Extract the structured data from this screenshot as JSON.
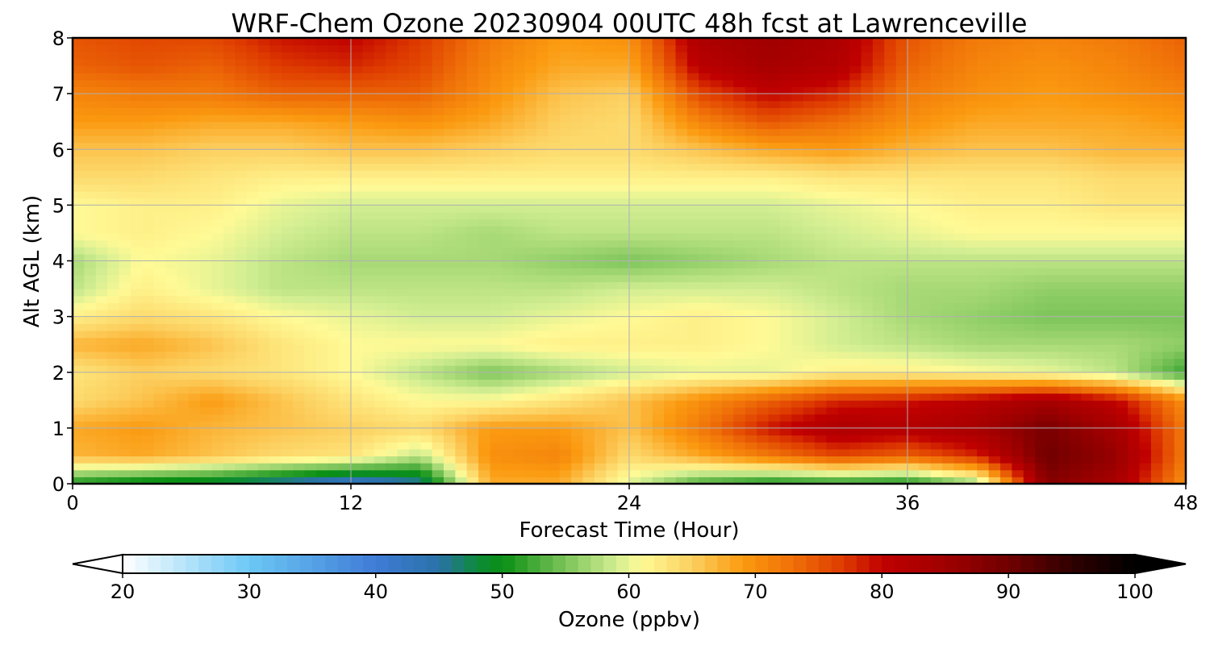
{
  "chart_data": {
    "type": "heatmap",
    "title": "WRF-Chem Ozone  20230904 00UTC 48h fcst at Lawrenceville",
    "xlabel": "Forecast Time (Hour)",
    "ylabel": "Alt AGL (km)",
    "xlim": [
      0,
      48
    ],
    "ylim": [
      0,
      8
    ],
    "x_ticks": [
      0,
      12,
      24,
      36,
      48
    ],
    "y_ticks": [
      0,
      1,
      2,
      3,
      4,
      5,
      6,
      7,
      8
    ],
    "grid": true,
    "x": [
      0,
      3,
      6,
      9,
      12,
      15,
      18,
      21,
      24,
      27,
      30,
      33,
      36,
      39,
      42,
      45,
      48
    ],
    "y": [
      0.05,
      0.5,
      1.0,
      1.5,
      2.0,
      2.5,
      3.0,
      3.5,
      4.0,
      4.5,
      5.0,
      5.5,
      6.0,
      6.5,
      7.0,
      7.5,
      8.0
    ],
    "z": [
      [
        52,
        50,
        49,
        46,
        43,
        46,
        68,
        68,
        60,
        54,
        52,
        53,
        52,
        58,
        88,
        84,
        70
      ],
      [
        67,
        68,
        66,
        64,
        63,
        58,
        70,
        71,
        64,
        68,
        72,
        76,
        74,
        78,
        90,
        86,
        72
      ],
      [
        68,
        69,
        67,
        66,
        65,
        64,
        69,
        69,
        66,
        72,
        79,
        83,
        82,
        84,
        89,
        84,
        72
      ],
      [
        64,
        66,
        69,
        66,
        63,
        61,
        61,
        63,
        66,
        70,
        74,
        78,
        79,
        81,
        84,
        80,
        70
      ],
      [
        63,
        65,
        64,
        63,
        61,
        58,
        55,
        57,
        59,
        60,
        60,
        62,
        62,
        61,
        60,
        58,
        52
      ],
      [
        67,
        68,
        66,
        63,
        61,
        61,
        61,
        62,
        62,
        62,
        61,
        59,
        58,
        57,
        57,
        57,
        56
      ],
      [
        62,
        64,
        63,
        61,
        60,
        59,
        59,
        60,
        61,
        62,
        61,
        59,
        57,
        56,
        55,
        55,
        55
      ],
      [
        58,
        62,
        60,
        58,
        58,
        58,
        58,
        58,
        59,
        59,
        59,
        58,
        57,
        57,
        56,
        56,
        56
      ],
      [
        57,
        61,
        60,
        58,
        57,
        57,
        57,
        56,
        55,
        56,
        57,
        58,
        58,
        58,
        58,
        58,
        58
      ],
      [
        61,
        62,
        61,
        59,
        58,
        58,
        57,
        58,
        58,
        58,
        58,
        59,
        60,
        61,
        61,
        61,
        61
      ],
      [
        61,
        62,
        62,
        60,
        59,
        59,
        59,
        59,
        59,
        59,
        59,
        60,
        61,
        62,
        62,
        63,
        63
      ],
      [
        64,
        64,
        63,
        62,
        62,
        62,
        62,
        62,
        62,
        62,
        62,
        63,
        63,
        63,
        63,
        64,
        64
      ],
      [
        66,
        66,
        65,
        65,
        66,
        66,
        65,
        64,
        64,
        66,
        68,
        69,
        67,
        66,
        66,
        67,
        67
      ],
      [
        69,
        69,
        68,
        68,
        69,
        70,
        68,
        65,
        64,
        71,
        75,
        73,
        70,
        68,
        68,
        68,
        69
      ],
      [
        71,
        72,
        72,
        74,
        74,
        74,
        70,
        66,
        65,
        76,
        80,
        78,
        72,
        70,
        69,
        70,
        71
      ],
      [
        74,
        75,
        74,
        77,
        78,
        76,
        71,
        68,
        68,
        81,
        84,
        82,
        74,
        71,
        70,
        71,
        73
      ],
      [
        75,
        76,
        76,
        79,
        80,
        77,
        72,
        69,
        70,
        83,
        85,
        83,
        75,
        72,
        71,
        72,
        74
      ]
    ],
    "colorbar": {
      "label": "Ozone  (ppbv)",
      "min": 20,
      "max": 100,
      "ticks": [
        20,
        30,
        40,
        50,
        60,
        70,
        80,
        90,
        100
      ],
      "extend": "both",
      "colormap": [
        [
          20,
          "#ffffff"
        ],
        [
          30,
          "#6cc8f5"
        ],
        [
          40,
          "#3f7bd6"
        ],
        [
          45,
          "#2a72a8"
        ],
        [
          48,
          "#0d8a3a"
        ],
        [
          50,
          "#0a8f14"
        ],
        [
          55,
          "#7cc45a"
        ],
        [
          59,
          "#d2ee92"
        ],
        [
          61,
          "#fffa96"
        ],
        [
          65,
          "#fcd060"
        ],
        [
          69,
          "#fb9a10"
        ],
        [
          73,
          "#ef7008"
        ],
        [
          77,
          "#de3a00"
        ],
        [
          80,
          "#c00000"
        ],
        [
          85,
          "#a00000"
        ],
        [
          90,
          "#700000"
        ],
        [
          95,
          "#300000"
        ],
        [
          100,
          "#000000"
        ]
      ]
    }
  }
}
